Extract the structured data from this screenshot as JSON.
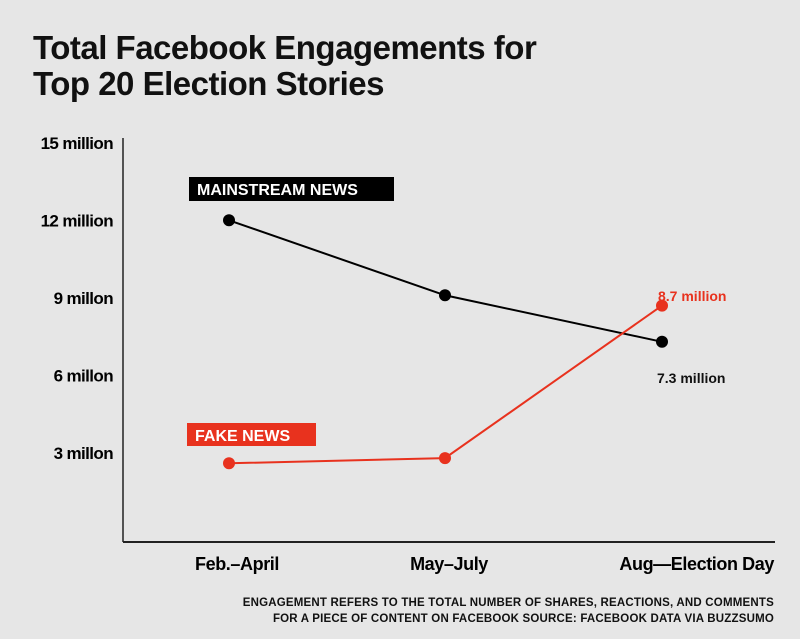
{
  "chart_data": {
    "type": "line",
    "title": "Total Facebook Engagements for Top 20 Election Stories",
    "categories": [
      "Feb.–April",
      "May–July",
      "Aug—Election Day"
    ],
    "y_ticks": [
      {
        "value": 15,
        "label": "15 million"
      },
      {
        "value": 12,
        "label": "12 million"
      },
      {
        "value": 9,
        "label": "9 millon"
      },
      {
        "value": 6,
        "label": "6 millon"
      },
      {
        "value": 3,
        "label": "3 millon"
      }
    ],
    "ylim": [
      0,
      15
    ],
    "grid": false,
    "series": [
      {
        "name": "MAINSTREAM NEWS",
        "color": "#000000",
        "values": [
          12,
          9.1,
          7.3
        ],
        "end_label": "7.3 million"
      },
      {
        "name": "FAKE NEWS",
        "color": "#e8321e",
        "values": [
          2.6,
          2.8,
          8.7
        ],
        "end_label": "8.7 million"
      }
    ],
    "note": [
      "ENGAGEMENT REFERS TO THE TOTAL NUMBER OF SHARES, REACTIONS, AND COMMENTS",
      "FOR A PIECE OF CONTENT ON FACEBOOK SOURCE: FACEBOOK DATA VIA BUZZSUMO"
    ]
  }
}
